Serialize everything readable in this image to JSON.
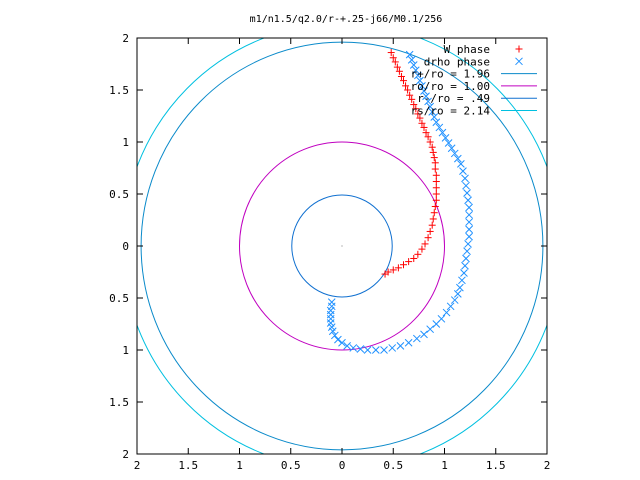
{
  "chart_data": {
    "type": "scatter",
    "title": "m1/n1.5/q2.0/r-+.25-j66/M0.1/256",
    "xlabel": "",
    "ylabel": "",
    "xlim": [
      -2,
      2
    ],
    "ylim": [
      -2,
      2
    ],
    "axis_labels_use_absolute_values": true,
    "x_ticks": [
      -2,
      -1.5,
      -1,
      -0.5,
      0,
      0.5,
      1,
      1.5,
      2
    ],
    "y_ticks": [
      -2,
      -1.5,
      -1,
      -0.5,
      0,
      0.5,
      1,
      1.5,
      2
    ],
    "x_tick_labels": [
      "2",
      "1.5",
      "1",
      "0.5",
      "0",
      "0.5",
      "1",
      "1.5",
      "2"
    ],
    "y_tick_labels": [
      "2",
      "1.5",
      "1",
      "0.5",
      "0",
      "0.5",
      "1",
      "1.5",
      "2"
    ],
    "grid": false,
    "legend_position": "top-right",
    "series": [
      {
        "name": "W phase",
        "kind": "points",
        "marker": "plus",
        "color": "#ff0000",
        "points": [
          [
            0.48,
            1.86
          ],
          [
            0.5,
            1.81
          ],
          [
            0.52,
            1.77
          ],
          [
            0.54,
            1.72
          ],
          [
            0.56,
            1.68
          ],
          [
            0.58,
            1.63
          ],
          [
            0.6,
            1.59
          ],
          [
            0.62,
            1.54
          ],
          [
            0.64,
            1.5
          ],
          [
            0.66,
            1.45
          ],
          [
            0.68,
            1.41
          ],
          [
            0.7,
            1.36
          ],
          [
            0.72,
            1.32
          ],
          [
            0.74,
            1.27
          ],
          [
            0.76,
            1.23
          ],
          [
            0.78,
            1.18
          ],
          [
            0.8,
            1.14
          ],
          [
            0.82,
            1.09
          ],
          [
            0.84,
            1.05
          ],
          [
            0.86,
            1.0
          ],
          [
            0.88,
            0.95
          ],
          [
            0.89,
            0.9
          ],
          [
            0.9,
            0.85
          ],
          [
            0.91,
            0.8
          ],
          [
            0.91,
            0.74
          ],
          [
            0.92,
            0.68
          ],
          [
            0.92,
            0.62
          ],
          [
            0.92,
            0.56
          ],
          [
            0.92,
            0.5
          ],
          [
            0.92,
            0.44
          ],
          [
            0.91,
            0.38
          ],
          [
            0.9,
            0.32
          ],
          [
            0.89,
            0.26
          ],
          [
            0.88,
            0.2
          ],
          [
            0.86,
            0.14
          ],
          [
            0.84,
            0.08
          ],
          [
            0.81,
            0.02
          ],
          [
            0.78,
            -0.03
          ],
          [
            0.74,
            -0.08
          ],
          [
            0.7,
            -0.12
          ],
          [
            0.65,
            -0.15
          ],
          [
            0.6,
            -0.18
          ],
          [
            0.55,
            -0.21
          ],
          [
            0.5,
            -0.23
          ],
          [
            0.45,
            -0.25
          ],
          [
            0.42,
            -0.27
          ]
        ]
      },
      {
        "name": "drho phase",
        "kind": "points",
        "marker": "cross",
        "color": "#1e90ff",
        "points": [
          [
            0.66,
            1.84
          ],
          [
            0.68,
            1.79
          ],
          [
            0.7,
            1.74
          ],
          [
            0.72,
            1.69
          ],
          [
            0.74,
            1.64
          ],
          [
            0.76,
            1.59
          ],
          [
            0.78,
            1.54
          ],
          [
            0.8,
            1.49
          ],
          [
            0.82,
            1.44
          ],
          [
            0.84,
            1.39
          ],
          [
            0.86,
            1.34
          ],
          [
            0.88,
            1.29
          ],
          [
            0.9,
            1.24
          ],
          [
            0.92,
            1.19
          ],
          [
            0.95,
            1.14
          ],
          [
            0.98,
            1.09
          ],
          [
            1.01,
            1.04
          ],
          [
            1.04,
            0.99
          ],
          [
            1.07,
            0.94
          ],
          [
            1.1,
            0.89
          ],
          [
            1.13,
            0.84
          ],
          [
            1.16,
            0.79
          ],
          [
            1.18,
            0.72
          ],
          [
            1.2,
            0.65
          ],
          [
            1.21,
            0.58
          ],
          [
            1.22,
            0.51
          ],
          [
            1.23,
            0.44
          ],
          [
            1.24,
            0.37
          ],
          [
            1.24,
            0.3
          ],
          [
            1.24,
            0.23
          ],
          [
            1.24,
            0.16
          ],
          [
            1.24,
            0.09
          ],
          [
            1.23,
            0.02
          ],
          [
            1.22,
            -0.05
          ],
          [
            1.21,
            -0.12
          ],
          [
            1.2,
            -0.19
          ],
          [
            1.19,
            -0.26
          ],
          [
            1.17,
            -0.33
          ],
          [
            1.15,
            -0.4
          ],
          [
            1.13,
            -0.46
          ],
          [
            1.1,
            -0.52
          ],
          [
            1.06,
            -0.58
          ],
          [
            1.02,
            -0.64
          ],
          [
            0.97,
            -0.7
          ],
          [
            0.92,
            -0.75
          ],
          [
            0.86,
            -0.8
          ],
          [
            0.8,
            -0.85
          ],
          [
            0.73,
            -0.89
          ],
          [
            0.65,
            -0.93
          ],
          [
            0.57,
            -0.96
          ],
          [
            0.49,
            -0.98
          ],
          [
            0.41,
            -1.0
          ],
          [
            0.33,
            -1.0
          ],
          [
            0.25,
            -1.0
          ],
          [
            0.18,
            -0.99
          ],
          [
            0.11,
            -0.98
          ],
          [
            0.05,
            -0.96
          ],
          [
            0.0,
            -0.93
          ],
          [
            -0.04,
            -0.9
          ],
          [
            -0.07,
            -0.86
          ],
          [
            -0.09,
            -0.82
          ],
          [
            -0.1,
            -0.78
          ],
          [
            -0.11,
            -0.74
          ],
          [
            -0.11,
            -0.7
          ],
          [
            -0.11,
            -0.66
          ],
          [
            -0.11,
            -0.62
          ],
          [
            -0.1,
            -0.58
          ],
          [
            -0.1,
            -0.54
          ]
        ]
      },
      {
        "name": "r+/ro = 1.96",
        "kind": "circle",
        "radius": 1.96,
        "color": "#0a8aca"
      },
      {
        "name": "ro/ro = 1.00",
        "kind": "circle",
        "radius": 1.0,
        "color": "#c000c0"
      },
      {
        "name": "r-/ro = .49",
        "kind": "circle",
        "radius": 0.49,
        "color": "#1070d0"
      },
      {
        "name": "rs/ro = 2.14",
        "kind": "circle",
        "radius": 2.14,
        "color": "#00c0e0"
      }
    ]
  }
}
